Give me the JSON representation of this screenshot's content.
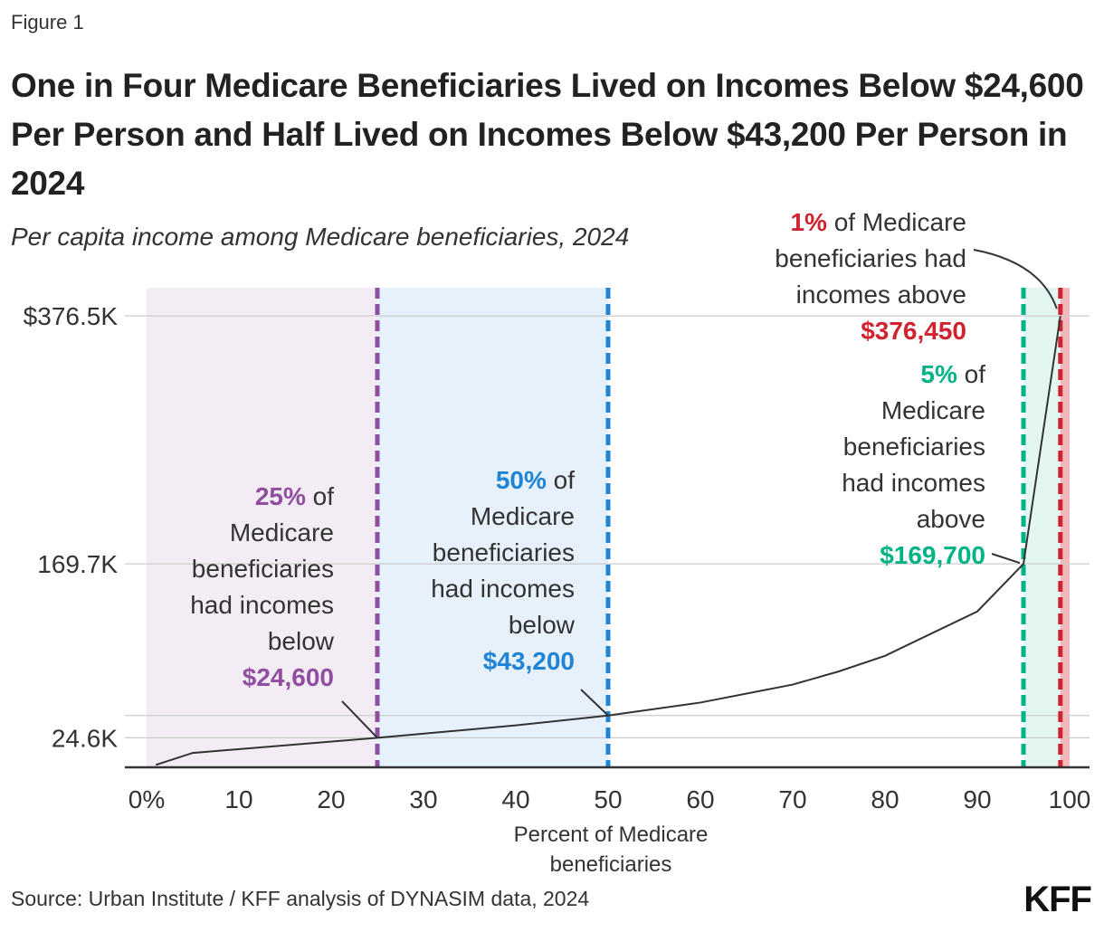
{
  "figure_label": "Figure 1",
  "title": "One in Four Medicare Beneficiaries Lived on Incomes Below $24,600 Per Person and Half Lived on Incomes Below $43,200 Per Person in 2024",
  "subtitle": "Per capita income among Medicare beneficiaries, 2024",
  "source": "Source: Urban Institute / KFF analysis of DYNASIM data, 2024",
  "logo": "KFF",
  "colors": {
    "purple": "#8f4e9f",
    "blue": "#1f84d6",
    "green": "#00b386",
    "red": "#d1232f",
    "line": "#333333"
  },
  "annotations": {
    "p25": {
      "pct": "25%",
      "text1": " of",
      "text2": "Medicare",
      "text3": "beneficiaries",
      "text4": "had incomes",
      "text5": "below",
      "value": "$24,600"
    },
    "p50": {
      "pct": "50%",
      "text1": " of",
      "text2": "Medicare",
      "text3": "beneficiaries",
      "text4": "had incomes",
      "text5": "below",
      "value": "$43,200"
    },
    "p95": {
      "pct": "5%",
      "text1": " of",
      "text2": "Medicare",
      "text3": "beneficiaries",
      "text4": "had incomes",
      "text5": "above",
      "value": "$169,700"
    },
    "p99": {
      "pct": "1%",
      "text1": " of Medicare",
      "text2": "beneficiaries had",
      "text3": "incomes above",
      "value": "$376,450"
    }
  },
  "chart_data": {
    "type": "line",
    "title": "One in Four Medicare Beneficiaries Lived on Incomes Below $24,600 Per Person and Half Lived on Incomes Below $43,200 Per Person in 2024",
    "subtitle": "Per capita income among Medicare beneficiaries, 2024",
    "xlabel": "Percent of Medicare beneficiaries",
    "ylabel": "",
    "xlim": [
      0,
      100
    ],
    "ylim": [
      0,
      400
    ],
    "y_unit": "thousands of dollars",
    "x_ticks": [
      0,
      10,
      20,
      30,
      40,
      50,
      60,
      70,
      80,
      90,
      100
    ],
    "x_tick_labels": [
      "0%",
      "10",
      "20",
      "30",
      "40",
      "50",
      "60",
      "70",
      "80",
      "90",
      "100"
    ],
    "y_ticks": [
      24.6,
      169.7,
      376.5
    ],
    "y_tick_labels": [
      "24.6K",
      "169.7K",
      "$376.5K"
    ],
    "gridlines_y": [
      24.6,
      43.2,
      169.7,
      376.5
    ],
    "x": [
      1,
      5,
      25,
      40,
      50,
      60,
      70,
      75,
      80,
      90,
      95,
      99
    ],
    "y": [
      2,
      12,
      24.6,
      35,
      43.2,
      54,
      69,
      80,
      93,
      130,
      169.7,
      376.45
    ],
    "shaded_bands": [
      {
        "from": 0,
        "to": 25,
        "color": "#f3ecf5"
      },
      {
        "from": 25,
        "to": 50,
        "color": "#e6f1fb"
      },
      {
        "from": 95,
        "to": 99,
        "color": "#e3f6f1"
      },
      {
        "from": 99,
        "to": 100,
        "color": "#f2b8bc"
      }
    ],
    "reference_lines": [
      {
        "x": 25,
        "color": "#8f4e9f"
      },
      {
        "x": 50,
        "color": "#1f84d6"
      },
      {
        "x": 95,
        "color": "#00b386"
      },
      {
        "x": 99,
        "color": "#d1232f"
      }
    ],
    "grid": true,
    "legend": "none"
  }
}
